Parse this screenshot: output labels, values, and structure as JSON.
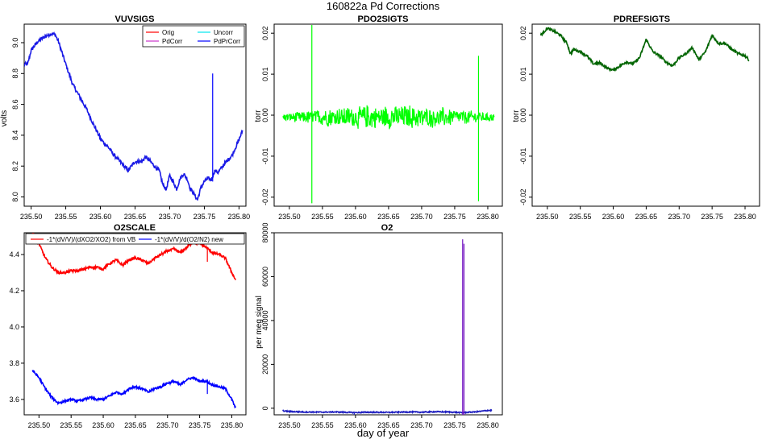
{
  "figure": {
    "title": "160822a   Pd Corrections",
    "xlabel": "day of year"
  },
  "chart_data": [
    {
      "id": "vuvsigs",
      "type": "line",
      "title": "VUVSIGS",
      "ylabel": "volts",
      "xlim": [
        235.49,
        235.81
      ],
      "ylim": [
        7.94,
        9.12
      ],
      "xticks": [
        235.5,
        235.55,
        235.6,
        235.65,
        235.7,
        235.75,
        235.8
      ],
      "xtick_labels": [
        "235.50",
        "235.55",
        "235.60",
        "235.65",
        "235.70",
        "235.75",
        "235.80"
      ],
      "yticks": [
        8.0,
        8.2,
        8.4,
        8.6,
        8.8,
        9.0
      ],
      "ytick_labels": [
        "8.0",
        "8.2",
        "8.4",
        "8.6",
        "8.8",
        "9.0"
      ],
      "legend": {
        "position": "top-right",
        "entries": [
          {
            "label": "Orig",
            "color": "#ff0000"
          },
          {
            "label": "Uncorr",
            "color": "#00e5ee"
          },
          {
            "label": "PdCorr",
            "color": "#cc33cc"
          },
          {
            "label": "PdPrCorr",
            "color": "#0000ff"
          }
        ]
      },
      "series": [
        {
          "name": "PdPrCorr",
          "color": "#1a1ae6",
          "noise": 0.012,
          "x": [
            235.49,
            235.495,
            235.5,
            235.51,
            235.52,
            235.53,
            235.535,
            235.54,
            235.55,
            235.56,
            235.57,
            235.58,
            235.59,
            235.6,
            235.605,
            235.61,
            235.62,
            235.63,
            235.64,
            235.643,
            235.65,
            235.66,
            235.665,
            235.67,
            235.68,
            235.685,
            235.69,
            235.695,
            235.7,
            235.705,
            235.71,
            235.715,
            235.72,
            235.725,
            235.73,
            235.735,
            235.74,
            235.745,
            235.75,
            235.755,
            235.76,
            235.765,
            235.77,
            235.78,
            235.79,
            235.8,
            235.805
          ],
          "y": [
            8.86,
            8.86,
            8.95,
            9.01,
            9.04,
            9.06,
            9.05,
            9.0,
            8.86,
            8.73,
            8.65,
            8.57,
            8.47,
            8.38,
            8.35,
            8.33,
            8.27,
            8.22,
            8.17,
            8.19,
            8.23,
            8.23,
            8.26,
            8.24,
            8.19,
            8.17,
            8.08,
            8.05,
            8.14,
            8.1,
            8.05,
            8.12,
            8.15,
            8.12,
            8.05,
            8.02,
            7.98,
            8.06,
            8.1,
            8.12,
            8.11,
            8.17,
            8.16,
            8.22,
            8.27,
            8.37,
            8.43
          ]
        }
      ],
      "spikes": [
        {
          "x": 235.762,
          "from": 8.1,
          "to": 8.8,
          "color": "#0000ff"
        }
      ]
    },
    {
      "id": "pdo2sigts",
      "type": "line",
      "title": "PDO2SIGTS",
      "ylabel": "torr",
      "xlim": [
        235.477,
        235.822
      ],
      "ylim": [
        -0.0222,
        0.0222
      ],
      "xticks": [
        235.5,
        235.55,
        235.6,
        235.65,
        235.7,
        235.75,
        235.8
      ],
      "xtick_labels": [
        "235.50",
        "235.55",
        "235.60",
        "235.65",
        "235.70",
        "235.75",
        "235.80"
      ],
      "yticks": [
        -0.02,
        -0.01,
        0.0,
        0.01,
        0.02
      ],
      "ytick_labels": [
        "-0.02",
        "-0.01",
        "0.00",
        "0.01",
        "0.02"
      ],
      "series": [
        {
          "name": "PDO2SIG",
          "color": "#00ff00",
          "noise": 0.0014,
          "x": [
            235.49,
            235.81
          ],
          "y": [
            -0.0005,
            -0.0005
          ]
        }
      ],
      "spikes": [
        {
          "x": 235.534,
          "from": -0.0215,
          "to": 0.022,
          "color": "#00ff00"
        },
        {
          "x": 235.786,
          "from": -0.021,
          "to": 0.0145,
          "color": "#00ff00"
        }
      ]
    },
    {
      "id": "pdrefsigts",
      "type": "line",
      "title": "PDREFSIGTS",
      "ylabel": "torr",
      "xlim": [
        235.477,
        235.822
      ],
      "ylim": [
        -0.0222,
        0.0222
      ],
      "xticks": [
        235.5,
        235.55,
        235.6,
        235.65,
        235.7,
        235.75,
        235.8
      ],
      "xtick_labels": [
        "235.50",
        "235.55",
        "235.60",
        "235.65",
        "235.70",
        "235.75",
        "235.80"
      ],
      "yticks": [
        -0.02,
        -0.01,
        0.0,
        0.01,
        0.02
      ],
      "ytick_labels": [
        "-0.02",
        "-0.01",
        "0.00",
        "0.01",
        "0.02"
      ],
      "series": [
        {
          "name": "PDREFSIG",
          "color": "#006400",
          "noise": 0.0003,
          "x": [
            235.49,
            235.5,
            235.51,
            235.52,
            235.53,
            235.535,
            235.54,
            235.55,
            235.56,
            235.57,
            235.58,
            235.59,
            235.6,
            235.61,
            235.62,
            235.63,
            235.64,
            235.65,
            235.66,
            235.67,
            235.68,
            235.69,
            235.7,
            235.71,
            235.72,
            235.73,
            235.74,
            235.75,
            235.76,
            235.77,
            235.78,
            235.79,
            235.8,
            235.806
          ],
          "y": [
            0.0195,
            0.0212,
            0.0205,
            0.0195,
            0.0175,
            0.015,
            0.016,
            0.0155,
            0.0145,
            0.0125,
            0.0128,
            0.0115,
            0.011,
            0.012,
            0.013,
            0.0125,
            0.014,
            0.0185,
            0.0155,
            0.0145,
            0.013,
            0.012,
            0.014,
            0.015,
            0.0165,
            0.0135,
            0.0155,
            0.0195,
            0.0175,
            0.0175,
            0.016,
            0.015,
            0.0145,
            0.0135
          ]
        }
      ]
    },
    {
      "id": "o2scale",
      "type": "line",
      "title": "O2SCALE",
      "ylabel": "",
      "xlim": [
        235.477,
        235.822
      ],
      "ylim": [
        3.515,
        4.52
      ],
      "xticks": [
        235.5,
        235.55,
        235.6,
        235.65,
        235.7,
        235.75,
        235.8
      ],
      "xtick_labels": [
        "235.50",
        "235.55",
        "235.60",
        "235.65",
        "235.70",
        "235.75",
        "235.80"
      ],
      "yticks": [
        3.6,
        3.8,
        4.0,
        4.2,
        4.4
      ],
      "ytick_labels": [
        "3.6",
        "3.8",
        "4.0",
        "4.2",
        "4.4"
      ],
      "legend": {
        "position": "top",
        "entries": [
          {
            "label": "-1*(dV/V)/(dXO2/XO2) from VB",
            "color": "#ff0000"
          },
          {
            "label": "-1*(dV/V)/d(O2/N2) new",
            "color": "#0000ff"
          }
        ]
      },
      "series": [
        {
          "name": "-1*(dV/V)/(dXO2/XO2) from VB",
          "color": "#ff0000",
          "noise": 0.007,
          "x": [
            235.49,
            235.5,
            235.51,
            235.52,
            235.53,
            235.54,
            235.55,
            235.56,
            235.57,
            235.58,
            235.59,
            235.6,
            235.61,
            235.62,
            235.63,
            235.64,
            235.65,
            235.66,
            235.67,
            235.68,
            235.69,
            235.7,
            235.71,
            235.72,
            235.73,
            235.74,
            235.75,
            235.76,
            235.77,
            235.78,
            235.79,
            235.8,
            235.806
          ],
          "y": [
            4.52,
            4.46,
            4.38,
            4.33,
            4.3,
            4.3,
            4.31,
            4.31,
            4.32,
            4.33,
            4.33,
            4.32,
            4.35,
            4.37,
            4.34,
            4.37,
            4.38,
            4.37,
            4.35,
            4.38,
            4.4,
            4.42,
            4.43,
            4.41,
            4.44,
            4.47,
            4.46,
            4.44,
            4.41,
            4.4,
            4.38,
            4.3,
            4.26
          ]
        },
        {
          "name": "-1*(dV/V)/d(O2/N2) new",
          "color": "#0000ff",
          "noise": 0.006,
          "x": [
            235.49,
            235.5,
            235.51,
            235.52,
            235.53,
            235.54,
            235.55,
            235.56,
            235.57,
            235.58,
            235.59,
            235.6,
            235.61,
            235.62,
            235.63,
            235.64,
            235.65,
            235.66,
            235.67,
            235.68,
            235.69,
            235.7,
            235.71,
            235.72,
            235.73,
            235.74,
            235.75,
            235.76,
            235.77,
            235.78,
            235.79,
            235.8,
            235.806
          ],
          "y": [
            3.76,
            3.72,
            3.66,
            3.61,
            3.58,
            3.59,
            3.6,
            3.59,
            3.6,
            3.61,
            3.6,
            3.6,
            3.62,
            3.64,
            3.63,
            3.66,
            3.67,
            3.66,
            3.64,
            3.66,
            3.67,
            3.69,
            3.7,
            3.68,
            3.71,
            3.72,
            3.7,
            3.7,
            3.68,
            3.67,
            3.66,
            3.6,
            3.55
          ]
        }
      ],
      "spikes": [
        {
          "x": 235.762,
          "from": 4.36,
          "to": 4.44,
          "color": "#ff0000"
        },
        {
          "x": 235.762,
          "from": 3.63,
          "to": 3.7,
          "color": "#0000ff"
        }
      ]
    },
    {
      "id": "o2",
      "type": "line",
      "title": "O2",
      "ylabel": "per meg signal",
      "xlim": [
        235.477,
        235.822
      ],
      "ylim": [
        -3000,
        80000
      ],
      "xticks": [
        235.5,
        235.55,
        235.6,
        235.65,
        235.7,
        235.75,
        235.8
      ],
      "xtick_labels": [
        "235.50",
        "235.55",
        "235.60",
        "235.65",
        "235.70",
        "235.75",
        "235.80"
      ],
      "yticks": [
        0,
        20000,
        40000,
        60000,
        80000
      ],
      "ytick_labels": [
        "0",
        "20000",
        "40000",
        "60000",
        "80000"
      ],
      "series": [
        {
          "name": "O2",
          "color": "#2020c0",
          "noise": 250,
          "x": [
            235.49,
            235.5,
            235.52,
            235.55,
            235.57,
            235.6,
            235.62,
            235.65,
            235.68,
            235.7,
            235.72,
            235.74,
            235.76,
            235.78,
            235.79,
            235.8,
            235.806
          ],
          "y": [
            -1200,
            -1500,
            -1700,
            -1800,
            -1700,
            -2000,
            -1800,
            -1900,
            -1700,
            -1800,
            -1600,
            -1700,
            -2000,
            -1700,
            -1400,
            -1000,
            -1000
          ]
        }
      ],
      "spikes": [
        {
          "x": 235.598,
          "from": -4000,
          "to": -1800,
          "color": "#2020c0"
        },
        {
          "x": 235.762,
          "from": -3500,
          "to": 77000,
          "color": "#7010c0"
        },
        {
          "x": 235.764,
          "from": -3000,
          "to": 75000,
          "color": "#7010c0"
        }
      ]
    }
  ]
}
